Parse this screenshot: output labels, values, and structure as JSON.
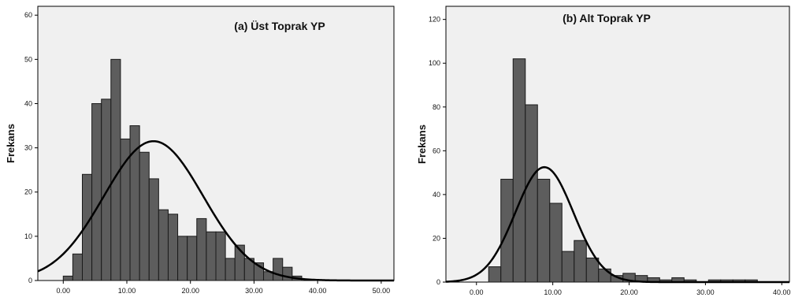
{
  "chart_data": [
    {
      "type": "bar",
      "title": "(a)  Üst Toprak YP",
      "xlabel": "",
      "ylabel": "Frekans",
      "xlim": [
        -4,
        52
      ],
      "ylim": [
        0,
        62
      ],
      "xticks": [
        0,
        10,
        20,
        30,
        40,
        50
      ],
      "xtick_labels": [
        "0.00",
        "10.00",
        "20.00",
        "30.00",
        "40.00",
        "50.00"
      ],
      "yticks": [
        0,
        10,
        20,
        30,
        40,
        50,
        60
      ],
      "ytick_labels": [
        "0",
        "10",
        "20",
        "30",
        "40",
        "50",
        "60"
      ],
      "bins": {
        "edges": [
          0,
          1.5,
          3,
          4.5,
          6,
          7.5,
          9,
          10.5,
          12,
          13.5,
          15,
          16.5,
          18,
          19.5,
          21,
          22.5,
          24,
          25.5,
          27,
          28.5,
          30,
          31.5,
          33,
          34.5,
          36,
          37.5,
          39,
          40.5,
          42
        ],
        "counts": [
          1,
          6,
          24,
          40,
          41,
          50,
          32,
          35,
          29,
          23,
          16,
          15,
          10,
          10,
          14,
          11,
          11,
          5,
          8,
          5,
          4,
          2,
          5,
          3,
          1,
          0,
          0,
          0
        ]
      },
      "normal_curve": {
        "mean": 14.2,
        "sd": 7.8,
        "peak": 31.5
      },
      "grid": false,
      "background": "#f0f0f0",
      "bar_color": "#5d5d5d"
    },
    {
      "type": "bar",
      "title": "(b)   Alt Toprak YP",
      "xlabel": "",
      "ylabel": "Frekans",
      "xlim": [
        -4,
        41
      ],
      "ylim": [
        0,
        126
      ],
      "xticks": [
        0,
        10,
        20,
        30,
        40
      ],
      "xtick_labels": [
        "0.00",
        "10.00",
        "20.00",
        "30.00",
        "40.00"
      ],
      "yticks": [
        0,
        20,
        40,
        60,
        80,
        100,
        120
      ],
      "ytick_labels": [
        "0",
        "20",
        "40",
        "60",
        "80",
        "100",
        "120"
      ],
      "bins": {
        "edges": [
          1.6,
          3.2,
          4.8,
          6.4,
          8.0,
          9.6,
          11.2,
          12.8,
          14.4,
          16.0,
          17.6,
          19.2,
          20.8,
          22.4,
          24.0,
          25.6,
          27.2,
          28.8,
          30.4,
          32.0,
          33.6,
          35.2,
          36.8,
          38.4
        ],
        "counts": [
          7,
          47,
          102,
          81,
          47,
          36,
          14,
          19,
          11,
          6,
          3,
          4,
          3,
          2,
          1,
          2,
          1,
          0,
          1,
          1,
          1,
          1,
          0
        ]
      },
      "normal_curve": {
        "mean": 8.9,
        "sd": 3.8,
        "peak": 52.5
      },
      "grid": false,
      "background": "#f0f0f0",
      "bar_color": "#5d5d5d"
    }
  ]
}
